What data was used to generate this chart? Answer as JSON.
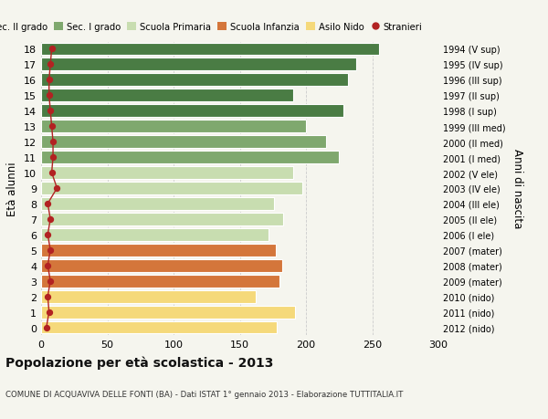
{
  "ages": [
    18,
    17,
    16,
    15,
    14,
    13,
    12,
    11,
    10,
    9,
    8,
    7,
    6,
    5,
    4,
    3,
    2,
    1,
    0
  ],
  "bar_values": [
    255,
    238,
    232,
    190,
    228,
    200,
    215,
    225,
    190,
    197,
    176,
    183,
    172,
    177,
    182,
    180,
    162,
    192,
    178
  ],
  "stranieri": [
    8,
    7,
    6,
    6,
    7,
    8,
    9,
    9,
    8,
    12,
    5,
    7,
    5,
    7,
    5,
    7,
    5,
    6,
    4
  ],
  "right_labels": [
    "1994 (V sup)",
    "1995 (IV sup)",
    "1996 (III sup)",
    "1997 (II sup)",
    "1998 (I sup)",
    "1999 (III med)",
    "2000 (II med)",
    "2001 (I med)",
    "2002 (V ele)",
    "2003 (IV ele)",
    "2004 (III ele)",
    "2005 (II ele)",
    "2006 (I ele)",
    "2007 (mater)",
    "2008 (mater)",
    "2009 (mater)",
    "2010 (nido)",
    "2011 (nido)",
    "2012 (nido)"
  ],
  "bar_colors": {
    "sec2": "#4a7c44",
    "sec1": "#7fa86e",
    "primaria": "#c8ddb0",
    "infanzia": "#d4763b",
    "nido": "#f5d97a"
  },
  "age_categories": {
    "sec2": [
      18,
      17,
      16,
      15,
      14
    ],
    "sec1": [
      13,
      12,
      11
    ],
    "primaria": [
      10,
      9,
      8,
      7,
      6
    ],
    "infanzia": [
      5,
      4,
      3
    ],
    "nido": [
      2,
      1,
      0
    ]
  },
  "legend_labels": [
    "Sec. II grado",
    "Sec. I grado",
    "Scuola Primaria",
    "Scuola Infanzia",
    "Asilo Nido",
    "Stranieri"
  ],
  "ylabel": "Età alunni",
  "right_ylabel": "Anni di nascita",
  "title": "Popolazione per età scolastica - 2013",
  "subtitle": "COMUNE DI ACQUAVIVA DELLE FONTI (BA) - Dati ISTAT 1° gennaio 2013 - Elaborazione TUTTITALIA.IT",
  "xlim": [
    0,
    300
  ],
  "xticks": [
    0,
    50,
    100,
    150,
    200,
    250,
    300
  ],
  "background_color": "#f5f5ee",
  "grid_color": "#cccccc",
  "stranieri_color": "#b22222",
  "stranieri_line_color": "#b22222"
}
